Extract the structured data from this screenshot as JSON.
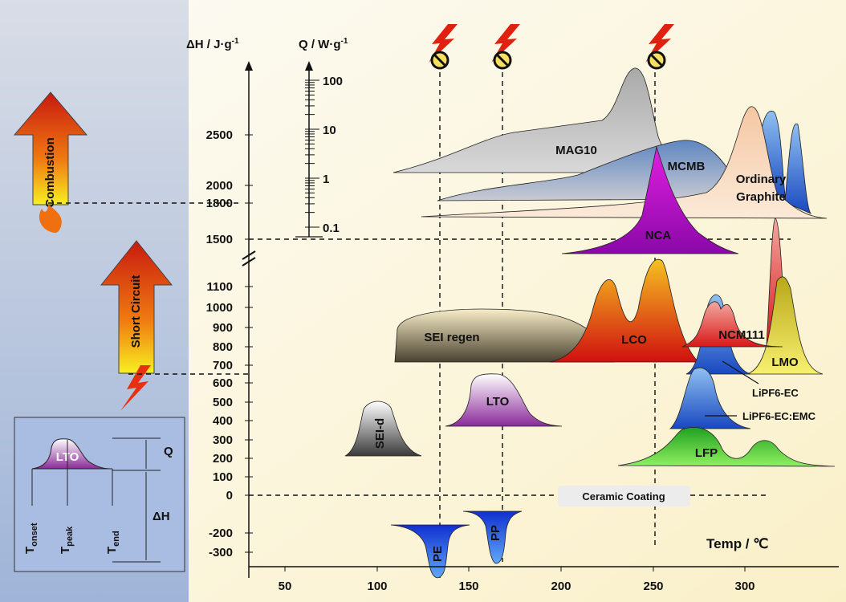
{
  "axes": {
    "y_label": "ΔH / J·g",
    "y_label_sup": "-1",
    "q_label": "Q / W·g",
    "q_label_sup": "-1",
    "x_label": "Temp / ℃",
    "y_ticks": [
      "2500",
      "2000",
      "1800",
      "1500",
      "1100",
      "1000",
      "900",
      "800",
      "700",
      "600",
      "500",
      "400",
      "300",
      "200",
      "100",
      "0",
      "-200",
      "-300"
    ],
    "q_ticks": [
      "100",
      "10",
      "1",
      "0.1"
    ],
    "x_ticks": [
      "50",
      "100",
      "150",
      "200",
      "250",
      "300"
    ]
  },
  "left_panel": {
    "combustion": "Combustion",
    "short_circuit": "Short Circuit"
  },
  "inset": {
    "peak": "LTO",
    "q": "Q",
    "dh": "ΔH",
    "t": "T",
    "onset": "onset",
    "peak_sub": "peak",
    "end": "end"
  },
  "peaks": {
    "mag10": "MAG10",
    "mcmb": "MCMB",
    "graphite_1": "Ordinary",
    "graphite_2": "Graphite",
    "nca": "NCA",
    "sei_regen": "SEI regen",
    "lco": "LCO",
    "ncm111": "NCM111",
    "lmo": "LMO",
    "lto": "LTO",
    "sei_d": "SEI-d",
    "lfp": "LFP",
    "pe": "PE",
    "pp": "PP"
  },
  "notes": {
    "lipf6_ec": "LiPF6-EC",
    "lipf6_ec_emc": "LiPF6-EC:EMC",
    "ceramic": "Ceramic Coating"
  }
}
